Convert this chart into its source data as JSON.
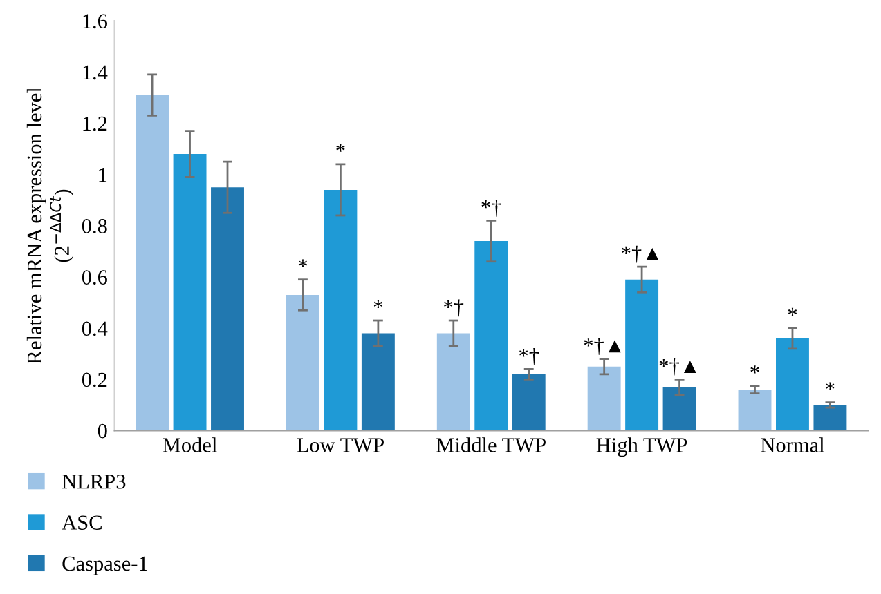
{
  "chart_data": {
    "type": "bar",
    "ylabel": "Relative mRNA expression level\n(2$^{−ΔΔCt}$)",
    "categories": [
      "Model",
      "Low TWP",
      "Middle TWP",
      "High TWP",
      "Normal"
    ],
    "series": [
      {
        "name": "NLRP3",
        "color": "#9dc3e6",
        "values": [
          1.31,
          0.53,
          0.38,
          0.25,
          0.16
        ],
        "errors": [
          0.08,
          0.06,
          0.05,
          0.03,
          0.015
        ],
        "value_labels": [
          null,
          "*",
          "*†",
          "*†▲",
          "*"
        ]
      },
      {
        "name": "ASC",
        "color": "#1f9ad6",
        "values": [
          1.08,
          0.94,
          0.74,
          0.59,
          0.36
        ],
        "errors": [
          0.09,
          0.1,
          0.08,
          0.05,
          0.04
        ],
        "value_labels": [
          null,
          "*",
          "*†",
          "*†▲",
          "*"
        ]
      },
      {
        "name": "Caspase-1",
        "color": "#2178b0",
        "values": [
          0.95,
          0.38,
          0.22,
          0.17,
          0.1
        ],
        "errors": [
          0.1,
          0.05,
          0.02,
          0.03,
          0.01
        ],
        "value_labels": [
          null,
          "*",
          "*†",
          "*†▲",
          "*"
        ]
      }
    ],
    "ylim": [
      0,
      1.6
    ],
    "yticks": [
      0,
      0.2,
      0.4,
      0.6,
      0.8,
      1,
      1.2,
      1.4,
      1.6
    ],
    "grid": false,
    "legend": "bottom left"
  }
}
